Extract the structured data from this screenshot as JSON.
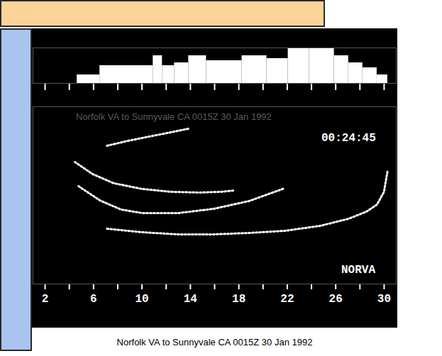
{
  "chart_data": [
    {
      "type": "bar",
      "bins": [
        4.64,
        6.52,
        10.92,
        11.68,
        12.68,
        13.85,
        15.32,
        18.26,
        20.31,
        22.07,
        23.83,
        25.88,
        27.06,
        28.23,
        29.41,
        30.29
      ],
      "values": [
        12,
        25,
        39,
        25,
        29,
        39,
        32,
        39,
        35,
        49,
        49,
        39,
        29,
        22,
        12
      ],
      "color": "#ffffff",
      "xlim": [
        1,
        31
      ],
      "xticks": [
        2,
        {
          "value": 4,
          "label": null
        },
        6,
        {
          "value": 8,
          "label": null
        },
        10,
        {
          "value": 12,
          "label": null
        },
        14,
        {
          "value": 16,
          "label": null
        },
        18,
        {
          "value": 20,
          "label": null
        },
        22,
        {
          "value": 24,
          "label": null
        },
        26,
        {
          "value": 28,
          "label": null
        },
        30
      ],
      "ylim": [
        0,
        50
      ],
      "tick_labels": false
    },
    {
      "type": "line",
      "title": "Norfolk VA to Sunnyvale CA 0015Z 30 Jan 1992",
      "annotations": [
        "00:24:45",
        "NORVA",
        "Norfolk VA to Sunnyvale CA 0015Z 30 Jan 1992"
      ],
      "xlim": [
        1,
        31
      ],
      "xticks": [
        2,
        {
          "value": 4,
          "label": null
        },
        6,
        {
          "value": 8,
          "label": null
        },
        10,
        {
          "value": 12,
          "label": null
        },
        14,
        {
          "value": 16,
          "label": null
        },
        18,
        {
          "value": 20,
          "label": null
        },
        22,
        {
          "value": 24,
          "label": null
        },
        26,
        {
          "value": 28,
          "label": null
        },
        30
      ],
      "ylim": [
        0,
        100
      ],
      "tick_labels": "x",
      "series": [
        {
          "color": "#ffffff",
          "line_style": "dotted",
          "x": [
            7.11,
            10.04,
            12.97,
            15.91,
            18.84,
            21.78,
            24.71,
            27.06,
            28.53,
            29.41,
            29.99,
            30.29
          ],
          "values": [
            31.2,
            29.2,
            28,
            28,
            28.8,
            30,
            32.8,
            36.8,
            40.8,
            44.8,
            52,
            64
          ]
        },
        {
          "color": "#ffffff",
          "line_style": "dotted",
          "x": [
            4.76,
            6.52,
            8.28,
            10.04,
            12.97,
            15.91,
            18.84,
            21.78
          ],
          "values": [
            55.2,
            47.2,
            42,
            40,
            40,
            42.4,
            46.8,
            54
          ]
        },
        {
          "color": "#ffffff",
          "line_style": "dotted",
          "x": [
            4.46,
            5.93,
            7.69,
            10.04,
            12.39,
            14.73,
            16.5,
            17.67
          ],
          "values": [
            68.8,
            62,
            56.8,
            53.6,
            52,
            51.6,
            52,
            52.8
          ]
        },
        {
          "color": "#ffffff",
          "line_style": "dotted",
          "x": [
            7.11,
            8.87,
            10.63,
            12.39,
            13.85
          ],
          "values": [
            78,
            80.8,
            83.2,
            85.6,
            87.6
          ]
        }
      ]
    }
  ]
}
